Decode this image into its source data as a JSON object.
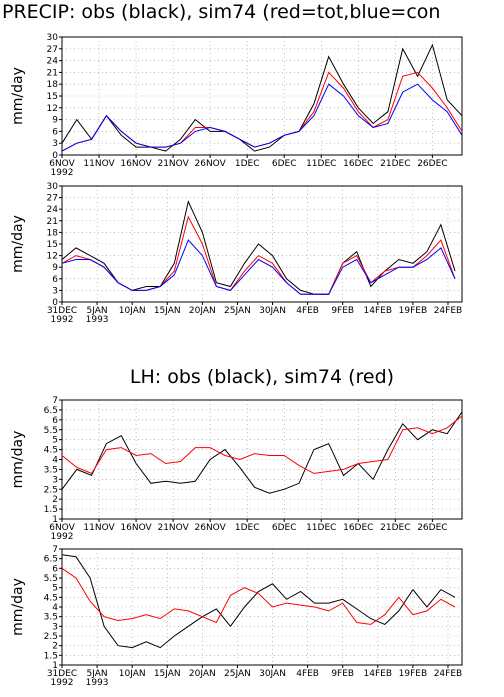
{
  "chart_data": [
    {
      "type": "line",
      "title": "PRECIP: obs (black), sim74 (red=tot,blue=con",
      "ylabel": "mm/day",
      "grid": true,
      "x": [
        "1992-11-06",
        "1992-11-08",
        "1992-11-10",
        "1992-11-12",
        "1992-11-14",
        "1992-11-16",
        "1992-11-18",
        "1992-11-20",
        "1992-11-22",
        "1992-11-24",
        "1992-11-26",
        "1992-11-28",
        "1992-11-30",
        "1992-12-02",
        "1992-12-04",
        "1992-12-06",
        "1992-12-08",
        "1992-12-10",
        "1992-12-12",
        "1992-12-14",
        "1992-12-16",
        "1992-12-18",
        "1992-12-20",
        "1992-12-22",
        "1992-12-24",
        "1992-12-26",
        "1992-12-28",
        "1992-12-30"
      ],
      "xlim": [
        "1992-11-06",
        "1992-12-30"
      ],
      "xticks": [
        {
          "value": "1992-11-06",
          "label": "6NOV"
        },
        {
          "value": "1992-11-11",
          "label": "11NOV"
        },
        {
          "value": "1992-11-16",
          "label": "16NOV"
        },
        {
          "value": "1992-11-21",
          "label": "21NOV"
        },
        {
          "value": "1992-11-26",
          "label": "26NOV"
        },
        {
          "value": "1992-12-01",
          "label": "1DEC"
        },
        {
          "value": "1992-12-06",
          "label": "6DEC"
        },
        {
          "value": "1992-12-11",
          "label": "11DEC"
        },
        {
          "value": "1992-12-16",
          "label": "16DEC"
        },
        {
          "value": "1992-12-21",
          "label": "21DEC"
        },
        {
          "value": "1992-12-26",
          "label": "26DEC"
        }
      ],
      "xtick_years": [
        {
          "value": "1992-11-06",
          "label": "1992"
        }
      ],
      "ylim": [
        0,
        30
      ],
      "yticks": [
        0,
        3,
        6,
        9,
        12,
        15,
        18,
        21,
        24,
        27,
        30
      ],
      "series": [
        {
          "name": "obs",
          "color": "#000000",
          "values": [
            3,
            9,
            4,
            10,
            5,
            2,
            2,
            1,
            4,
            9,
            6,
            6,
            4,
            1,
            2,
            5,
            6,
            13,
            25,
            18,
            12,
            8,
            11,
            27,
            20,
            28,
            14,
            10
          ]
        },
        {
          "name": "tot",
          "color": "#ff0000",
          "values": [
            1,
            3,
            4,
            10,
            6,
            3,
            2,
            2,
            3,
            7,
            7,
            6,
            4,
            2,
            3,
            5,
            6,
            11,
            21,
            17,
            11,
            7,
            9,
            20,
            21,
            17,
            12,
            6
          ]
        },
        {
          "name": "con",
          "color": "#0000ff",
          "values": [
            1,
            3,
            4,
            10,
            6,
            3,
            2,
            2,
            3,
            6,
            7,
            6,
            4,
            2,
            3,
            5,
            6,
            10,
            18,
            15,
            10,
            7,
            8,
            16,
            18,
            14,
            11,
            5
          ]
        }
      ]
    },
    {
      "type": "line",
      "ylabel": "mm/day",
      "grid": true,
      "x": [
        "1992-12-31",
        "1993-01-02",
        "1993-01-04",
        "1993-01-06",
        "1993-01-08",
        "1993-01-10",
        "1993-01-12",
        "1993-01-14",
        "1993-01-16",
        "1993-01-18",
        "1993-01-20",
        "1993-01-22",
        "1993-01-24",
        "1993-01-26",
        "1993-01-28",
        "1993-01-30",
        "1993-02-01",
        "1993-02-03",
        "1993-02-05",
        "1993-02-07",
        "1993-02-09",
        "1993-02-11",
        "1993-02-13",
        "1993-02-15",
        "1993-02-17",
        "1993-02-19",
        "1993-02-21",
        "1993-02-23",
        "1993-02-25"
      ],
      "xlim": [
        "1992-12-31",
        "1993-02-26"
      ],
      "xticks": [
        {
          "value": "1992-12-31",
          "label": "31DEC"
        },
        {
          "value": "1993-01-05",
          "label": "5JAN"
        },
        {
          "value": "1993-01-10",
          "label": "10JAN"
        },
        {
          "value": "1993-01-15",
          "label": "15JAN"
        },
        {
          "value": "1993-01-20",
          "label": "20JAN"
        },
        {
          "value": "1993-01-25",
          "label": "25JAN"
        },
        {
          "value": "1993-01-30",
          "label": "30JAN"
        },
        {
          "value": "1993-02-04",
          "label": "4FEB"
        },
        {
          "value": "1993-02-09",
          "label": "9FEB"
        },
        {
          "value": "1993-02-14",
          "label": "14FEB"
        },
        {
          "value": "1993-02-19",
          "label": "19FEB"
        },
        {
          "value": "1993-02-24",
          "label": "24FEB"
        }
      ],
      "xtick_years": [
        {
          "value": "1992-12-31",
          "label": "1992"
        },
        {
          "value": "1993-01-05",
          "label": "1993"
        }
      ],
      "ylim": [
        0,
        30
      ],
      "yticks": [
        0,
        3,
        6,
        9,
        12,
        15,
        18,
        21,
        24,
        27,
        30
      ],
      "series": [
        {
          "name": "obs",
          "color": "#000000",
          "values": [
            11,
            14,
            12,
            10,
            5,
            3,
            4,
            4,
            10,
            26,
            18,
            5,
            4,
            10,
            15,
            12,
            6,
            3,
            2,
            2,
            10,
            13,
            4,
            8,
            11,
            10,
            13,
            20,
            8
          ]
        },
        {
          "name": "tot",
          "color": "#ff0000",
          "values": [
            10,
            12,
            11,
            9,
            5,
            3,
            3,
            4,
            8,
            22,
            15,
            4,
            3,
            8,
            12,
            10,
            5,
            2,
            2,
            2,
            10,
            12,
            5,
            8,
            9,
            9,
            12,
            16,
            6
          ]
        },
        {
          "name": "con",
          "color": "#0000ff",
          "values": [
            10,
            11,
            11,
            9,
            5,
            3,
            3,
            4,
            7,
            16,
            12,
            4,
            3,
            7,
            11,
            9,
            5,
            2,
            2,
            2,
            9,
            11,
            5,
            7,
            9,
            9,
            11,
            14,
            6
          ]
        }
      ]
    },
    {
      "type": "line",
      "title": "LH: obs (black), sim74 (red)",
      "ylabel": "mm/day",
      "grid": true,
      "x": [
        "1992-11-06",
        "1992-11-08",
        "1992-11-10",
        "1992-11-12",
        "1992-11-14",
        "1992-11-16",
        "1992-11-18",
        "1992-11-20",
        "1992-11-22",
        "1992-11-24",
        "1992-11-26",
        "1992-11-28",
        "1992-11-30",
        "1992-12-02",
        "1992-12-04",
        "1992-12-06",
        "1992-12-08",
        "1992-12-10",
        "1992-12-12",
        "1992-12-14",
        "1992-12-16",
        "1992-12-18",
        "1992-12-20",
        "1992-12-22",
        "1992-12-24",
        "1992-12-26",
        "1992-12-28",
        "1992-12-30"
      ],
      "xlim": [
        "1992-11-06",
        "1992-12-30"
      ],
      "xticks": [
        {
          "value": "1992-11-06",
          "label": "6NOV"
        },
        {
          "value": "1992-11-11",
          "label": "11NOV"
        },
        {
          "value": "1992-11-16",
          "label": "16NOV"
        },
        {
          "value": "1992-11-21",
          "label": "21NOV"
        },
        {
          "value": "1992-11-26",
          "label": "26NOV"
        },
        {
          "value": "1992-12-01",
          "label": "1DEC"
        },
        {
          "value": "1992-12-06",
          "label": "6DEC"
        },
        {
          "value": "1992-12-11",
          "label": "11DEC"
        },
        {
          "value": "1992-12-16",
          "label": "16DEC"
        },
        {
          "value": "1992-12-21",
          "label": "21DEC"
        },
        {
          "value": "1992-12-26",
          "label": "26DEC"
        }
      ],
      "xtick_years": [
        {
          "value": "1992-11-06",
          "label": "1992"
        }
      ],
      "ylim": [
        1,
        7
      ],
      "yticks": [
        1,
        1.5,
        2,
        2.5,
        3,
        3.5,
        4,
        4.5,
        5,
        5.5,
        6,
        6.5,
        7
      ],
      "series": [
        {
          "name": "obs",
          "color": "#000000",
          "values": [
            2.5,
            3.5,
            3.2,
            4.8,
            5.2,
            3.8,
            2.8,
            2.9,
            2.8,
            2.9,
            4.0,
            4.5,
            3.6,
            2.6,
            2.3,
            2.5,
            2.8,
            4.5,
            4.8,
            3.2,
            3.8,
            3.0,
            4.5,
            5.8,
            5.0,
            5.5,
            5.3,
            6.4
          ]
        },
        {
          "name": "sim74",
          "color": "#ff0000",
          "values": [
            4.2,
            3.6,
            3.3,
            4.5,
            4.6,
            4.2,
            4.3,
            3.8,
            3.9,
            4.6,
            4.6,
            4.2,
            4.0,
            4.3,
            4.2,
            4.2,
            3.7,
            3.3,
            3.4,
            3.5,
            3.8,
            3.9,
            4.0,
            5.5,
            5.6,
            5.3,
            5.6,
            6.2
          ]
        }
      ]
    },
    {
      "type": "line",
      "ylabel": "mm/day",
      "grid": true,
      "x": [
        "1992-12-31",
        "1993-01-02",
        "1993-01-04",
        "1993-01-06",
        "1993-01-08",
        "1993-01-10",
        "1993-01-12",
        "1993-01-14",
        "1993-01-16",
        "1993-01-18",
        "1993-01-20",
        "1993-01-22",
        "1993-01-24",
        "1993-01-26",
        "1993-01-28",
        "1993-01-30",
        "1993-02-01",
        "1993-02-03",
        "1993-02-05",
        "1993-02-07",
        "1993-02-09",
        "1993-02-11",
        "1993-02-13",
        "1993-02-15",
        "1993-02-17",
        "1993-02-19",
        "1993-02-21",
        "1993-02-23",
        "1993-02-25"
      ],
      "xlim": [
        "1992-12-31",
        "1993-02-26"
      ],
      "xticks": [
        {
          "value": "1992-12-31",
          "label": "31DEC"
        },
        {
          "value": "1993-01-05",
          "label": "5JAN"
        },
        {
          "value": "1993-01-10",
          "label": "10JAN"
        },
        {
          "value": "1993-01-15",
          "label": "15JAN"
        },
        {
          "value": "1993-01-20",
          "label": "20JAN"
        },
        {
          "value": "1993-01-25",
          "label": "25JAN"
        },
        {
          "value": "1993-01-30",
          "label": "30JAN"
        },
        {
          "value": "1993-02-04",
          "label": "4FEB"
        },
        {
          "value": "1993-02-09",
          "label": "9FEB"
        },
        {
          "value": "1993-02-14",
          "label": "14FEB"
        },
        {
          "value": "1993-02-19",
          "label": "19FEB"
        },
        {
          "value": "1993-02-24",
          "label": "24FEB"
        }
      ],
      "xtick_years": [
        {
          "value": "1992-12-31",
          "label": "1992"
        },
        {
          "value": "1993-01-05",
          "label": "1993"
        }
      ],
      "ylim": [
        1,
        7
      ],
      "yticks": [
        1,
        1.5,
        2,
        2.5,
        3,
        3.5,
        4,
        4.5,
        5,
        5.5,
        6,
        6.5,
        7
      ],
      "series": [
        {
          "name": "obs",
          "color": "#000000",
          "values": [
            6.7,
            6.6,
            5.5,
            3.0,
            2.0,
            1.9,
            2.2,
            1.9,
            2.5,
            3.0,
            3.5,
            3.9,
            3.0,
            4.0,
            4.8,
            5.2,
            4.4,
            4.8,
            4.2,
            4.2,
            4.4,
            3.9,
            3.4,
            3.1,
            3.8,
            4.9,
            4.0,
            4.9,
            4.5
          ]
        },
        {
          "name": "sim74",
          "color": "#ff0000",
          "values": [
            6.0,
            5.5,
            4.3,
            3.5,
            3.3,
            3.4,
            3.6,
            3.4,
            3.9,
            3.8,
            3.5,
            3.2,
            4.6,
            5.0,
            4.7,
            4.0,
            4.2,
            4.1,
            4.0,
            3.8,
            4.2,
            3.2,
            3.1,
            3.6,
            4.5,
            3.6,
            3.8,
            4.4,
            4.0
          ]
        }
      ]
    }
  ]
}
